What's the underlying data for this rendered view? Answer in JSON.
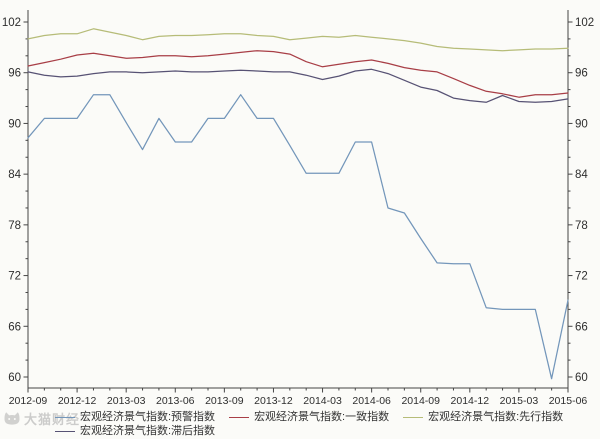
{
  "chart_data": {
    "type": "line",
    "title": "",
    "xlabel": "",
    "ylabel": "",
    "ylim": [
      60,
      102
    ],
    "y_ticks": [
      60,
      66,
      72,
      78,
      84,
      90,
      96,
      102
    ],
    "y_minor_step": 2,
    "grid": false,
    "legend_position": "bottom",
    "axis_color": "#454545",
    "tick_label_color": "#2e2e2e",
    "background": "#fbfbf8",
    "x_tick_labels": [
      "2012-09",
      "2012-12",
      "2013-03",
      "2013-06",
      "2013-09",
      "2013-12",
      "2014-03",
      "2014-06",
      "2014-09",
      "2014-12",
      "2015-03",
      "2015-06"
    ],
    "x": [
      "2012-09",
      "2012-10",
      "2012-11",
      "2012-12",
      "2013-01",
      "2013-02",
      "2013-03",
      "2013-04",
      "2013-05",
      "2013-06",
      "2013-07",
      "2013-08",
      "2013-09",
      "2013-10",
      "2013-11",
      "2013-12",
      "2014-01",
      "2014-02",
      "2014-03",
      "2014-04",
      "2014-05",
      "2014-06",
      "2014-07",
      "2014-08",
      "2014-09",
      "2014-10",
      "2014-11",
      "2014-12",
      "2015-01",
      "2015-02",
      "2015-03",
      "2015-04",
      "2015-05",
      "2015-06"
    ],
    "series": [
      {
        "name": "宏观经济景气指数:预警指数",
        "color": "#7396ba",
        "values": [
          88.3,
          90.6,
          90.6,
          90.6,
          93.4,
          93.4,
          90.1,
          86.9,
          90.6,
          87.8,
          87.8,
          90.6,
          90.6,
          93.4,
          90.6,
          90.6,
          87.4,
          84.1,
          84.1,
          84.1,
          87.8,
          87.8,
          80.0,
          79.4,
          76.4,
          73.5,
          73.4,
          73.4,
          68.2,
          68.0,
          68.0,
          68.0,
          59.8,
          69.1
        ]
      },
      {
        "name": "宏观经济景气指数:一致指数",
        "color": "#a83e46",
        "values": [
          96.8,
          97.2,
          97.6,
          98.1,
          98.3,
          98.0,
          97.7,
          97.8,
          98.0,
          98.0,
          97.9,
          98.0,
          98.2,
          98.4,
          98.6,
          98.5,
          98.2,
          97.3,
          96.7,
          97.0,
          97.3,
          97.5,
          97.1,
          96.6,
          96.3,
          96.1,
          95.3,
          94.5,
          93.8,
          93.5,
          93.1,
          93.4,
          93.4,
          93.6
        ]
      },
      {
        "name": "宏观经济景气指数:先行指数",
        "color": "#b6bc78",
        "values": [
          100.0,
          100.4,
          100.6,
          100.6,
          101.2,
          100.8,
          100.4,
          99.9,
          100.3,
          100.4,
          100.4,
          100.5,
          100.6,
          100.6,
          100.4,
          100.3,
          99.9,
          100.1,
          100.3,
          100.2,
          100.4,
          100.2,
          100.0,
          99.8,
          99.5,
          99.1,
          98.9,
          98.8,
          98.7,
          98.6,
          98.7,
          98.8,
          98.8,
          98.9
        ]
      },
      {
        "name": "宏观经济景气指数:滞后指数",
        "color": "#575274",
        "values": [
          96.1,
          95.7,
          95.5,
          95.6,
          95.9,
          96.1,
          96.1,
          96.0,
          96.1,
          96.2,
          96.1,
          96.1,
          96.2,
          96.3,
          96.2,
          96.1,
          96.1,
          95.7,
          95.2,
          95.6,
          96.2,
          96.4,
          95.9,
          95.1,
          94.3,
          93.9,
          93.0,
          92.7,
          92.5,
          93.3,
          92.6,
          92.5,
          92.6,
          92.9
        ]
      }
    ]
  },
  "watermark": {
    "text": "大猫财经"
  }
}
